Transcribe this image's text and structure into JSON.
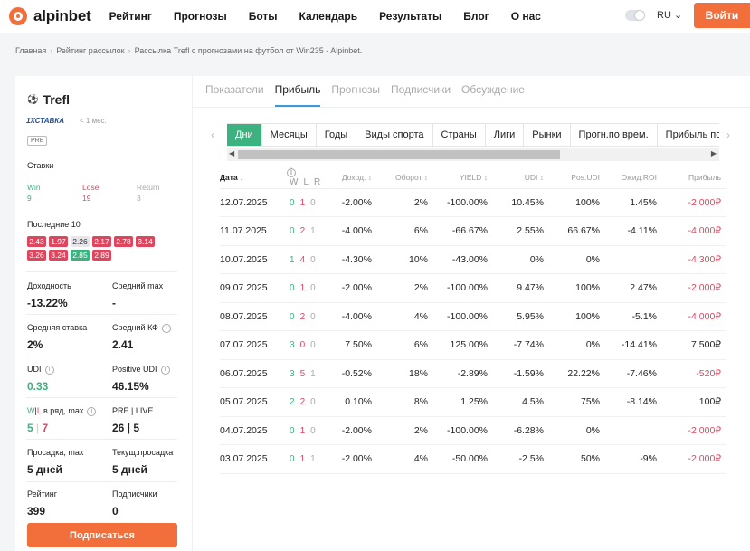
{
  "brand": {
    "name": "alpinbet"
  },
  "nav": [
    "Рейтинг",
    "Прогнозы",
    "Боты",
    "Календарь",
    "Результаты",
    "Блог",
    "О нас"
  ],
  "lang": "RU ⌄",
  "login_label": "Войти",
  "breadcrumb": [
    "Главная",
    "Рейтинг рассылок",
    "Рассылка Trefl с прогнозами на футбол от Win235 - Alpinbet."
  ],
  "profile": {
    "name": "Trefl",
    "bookmaker": "1ХСТАВКА",
    "age": "< 1 мес.",
    "pre": "PRE",
    "stakes_label": "Ставки",
    "win_label": "Win",
    "win": "9",
    "lose_label": "Lose",
    "lose": "19",
    "return_label": "Return",
    "return": "3",
    "last10_label": "Последние 10",
    "last10": [
      {
        "v": "2.43",
        "c": "red"
      },
      {
        "v": "1.97",
        "c": "red"
      },
      {
        "v": "2.26",
        "c": "gray"
      },
      {
        "v": "2.17",
        "c": "red"
      },
      {
        "v": "2.78",
        "c": "red"
      },
      {
        "v": "3.14",
        "c": "red"
      },
      {
        "v": "3.26",
        "c": "red"
      },
      {
        "v": "3.24",
        "c": "red"
      },
      {
        "v": "2.85",
        "c": "green"
      },
      {
        "v": "2.89",
        "c": "red"
      }
    ],
    "stats": {
      "yield_label": "Доходность",
      "yield": "-13.22%",
      "avgmax_label": "Средний max",
      "avgmax": "-",
      "avgstake_label": "Средняя ставка",
      "avgstake": "2%",
      "avgkf_label": "Средний КФ",
      "avgkf": "2.41",
      "udi_label": "UDI",
      "udi": "0.33",
      "pudi_label": "Positive UDI",
      "pudi": "46.15%",
      "wl_label_w": "W",
      "wl_label_sep": "|",
      "wl_label_l": "L",
      "wl_label_rest": " в ряд, max",
      "wl_w": "5",
      "wl_sep": " | ",
      "wl_l": "7",
      "prelive_label": "PRE | LIVE",
      "prelive": "26 | 5",
      "dd_label": "Просадка, max",
      "dd": "5 дней",
      "cdd_label": "Текущ.просадка",
      "cdd": "5 дней",
      "rating_label": "Рейтинг",
      "rating": "399",
      "subs_label": "Подписчики",
      "subs": "0"
    },
    "subscribe_label": "Подписаться"
  },
  "tabs": [
    "Показатели",
    "Прибыль",
    "Прогнозы",
    "Подписчики",
    "Обсуждение"
  ],
  "filter_tabs": [
    "Дни",
    "Месяцы",
    "Годы",
    "Виды спорта",
    "Страны",
    "Лиги",
    "Рынки",
    "Прогн.по врем.",
    "Прибыль по вре"
  ],
  "table": {
    "headers": [
      "Дата ↓",
      "W",
      "L",
      "R",
      "Доход. ↕",
      "Оборот ↕",
      "YIELD ↕",
      "UDI ↕",
      "Pos.UDI",
      "Ожид.ROI",
      "Прибыль"
    ],
    "rows": [
      [
        "12.07.2025",
        "0",
        "1",
        "0",
        "-2.00%",
        "2%",
        "-100.00%",
        "10.45%",
        "100%",
        "1.45%",
        "-2 000₽"
      ],
      [
        "11.07.2025",
        "0",
        "2",
        "1",
        "-4.00%",
        "6%",
        "-66.67%",
        "2.55%",
        "66.67%",
        "-4.11%",
        "-4 000₽"
      ],
      [
        "10.07.2025",
        "1",
        "4",
        "0",
        "-4.30%",
        "10%",
        "-43.00%",
        "0%",
        "0%",
        "",
        "-4 300₽"
      ],
      [
        "09.07.2025",
        "0",
        "1",
        "0",
        "-2.00%",
        "2%",
        "-100.00%",
        "9.47%",
        "100%",
        "2.47%",
        "-2 000₽"
      ],
      [
        "08.07.2025",
        "0",
        "2",
        "0",
        "-4.00%",
        "4%",
        "-100.00%",
        "5.95%",
        "100%",
        "-5.1%",
        "-4 000₽"
      ],
      [
        "07.07.2025",
        "3",
        "0",
        "0",
        "7.50%",
        "6%",
        "125.00%",
        "-7.74%",
        "0%",
        "-14.41%",
        "7 500₽"
      ],
      [
        "06.07.2025",
        "3",
        "5",
        "1",
        "-0.52%",
        "18%",
        "-2.89%",
        "-1.59%",
        "22.22%",
        "-7.46%",
        "-520₽"
      ],
      [
        "05.07.2025",
        "2",
        "2",
        "0",
        "0.10%",
        "8%",
        "1.25%",
        "4.5%",
        "75%",
        "-8.14%",
        "100₽"
      ],
      [
        "04.07.2025",
        "0",
        "1",
        "0",
        "-2.00%",
        "2%",
        "-100.00%",
        "-6.28%",
        "0%",
        "",
        "-2 000₽"
      ],
      [
        "03.07.2025",
        "0",
        "1",
        "1",
        "-2.00%",
        "4%",
        "-50.00%",
        "-2.5%",
        "50%",
        "-9%",
        "-2 000₽"
      ]
    ]
  }
}
